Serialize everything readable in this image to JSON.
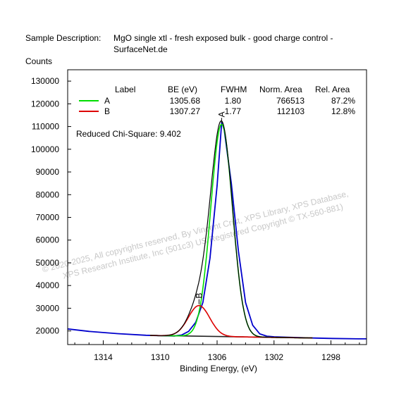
{
  "header": {
    "desc_label": "Sample Description:",
    "desc_line1": "MgO single xtl - fresh exposed bulk - good charge control -",
    "desc_line2": "SurfaceNet.de"
  },
  "watermark": {
    "line1": "© 2020-2025,  All copyrights reserved,   By Vincent Crist,  XPS Library, XPS Database,",
    "line2": "XPS Research Institute, Inc (501c3)   US Registered Copyright © TX-560-881)"
  },
  "legend": {
    "headers": [
      "Label",
      "BE (eV)",
      "FWHM",
      "Norm. Area",
      "Rel. Area"
    ],
    "rows": [
      {
        "label": "A",
        "be": "1305.68",
        "fwhm": "1.80",
        "norm_area": "766513",
        "rel_area": "87.2%",
        "color": "#00dd00"
      },
      {
        "label": "B",
        "be": "1307.27",
        "fwhm": "1.77",
        "norm_area": "112103",
        "rel_area": "12.8%",
        "color": "#dd0000"
      }
    ]
  },
  "chi_square": "Reduced Chi-Square: 9.402",
  "chart_data": {
    "type": "line",
    "title": "",
    "xlabel": "Binding Energy, (eV)",
    "ylabel": "Counts",
    "x_reversed": true,
    "xlim": [
      1316.5,
      1295.5
    ],
    "ylim": [
      14000,
      135000
    ],
    "xticks": [
      1314,
      1310,
      1306,
      1302,
      1298
    ],
    "yticks": [
      20000,
      30000,
      40000,
      50000,
      60000,
      70000,
      80000,
      90000,
      100000,
      110000,
      120000,
      130000
    ],
    "grid": false,
    "peak_labels": [
      "A",
      "B"
    ],
    "background_region": [
      1310.7,
      1299.3
    ],
    "series": [
      {
        "name": "A",
        "type": "gaussian",
        "center": 1305.68,
        "fwhm": 1.8,
        "height": 93500,
        "color": "#00dd00"
      },
      {
        "name": "B",
        "type": "gaussian",
        "center": 1307.27,
        "fwhm": 1.77,
        "height": 13500,
        "color": "#dd0000"
      },
      {
        "name": "data",
        "color": "#0000cc",
        "points": [
          [
            1316.5,
            20900
          ],
          [
            1315,
            19800
          ],
          [
            1313,
            18800
          ],
          [
            1311,
            18100
          ],
          [
            1310,
            17900
          ],
          [
            1309,
            17800
          ],
          [
            1308.5,
            18200
          ],
          [
            1308,
            19800
          ],
          [
            1307.5,
            23800
          ],
          [
            1307,
            32500
          ],
          [
            1306.5,
            52000
          ],
          [
            1306,
            84000
          ],
          [
            1305.8,
            101000
          ],
          [
            1305.68,
            112000
          ],
          [
            1305.5,
            108500
          ],
          [
            1305,
            85000
          ],
          [
            1304.5,
            55000
          ],
          [
            1304,
            32500
          ],
          [
            1303.5,
            22500
          ],
          [
            1303,
            18700
          ],
          [
            1302.5,
            17700
          ],
          [
            1302,
            17400
          ],
          [
            1300,
            17000
          ],
          [
            1298,
            16700
          ],
          [
            1296,
            16500
          ],
          [
            1295.5,
            16500
          ]
        ]
      },
      {
        "name": "baseline",
        "color": "#222222",
        "points": [
          [
            1310.7,
            18000
          ],
          [
            1299.3,
            16900
          ]
        ]
      }
    ]
  }
}
